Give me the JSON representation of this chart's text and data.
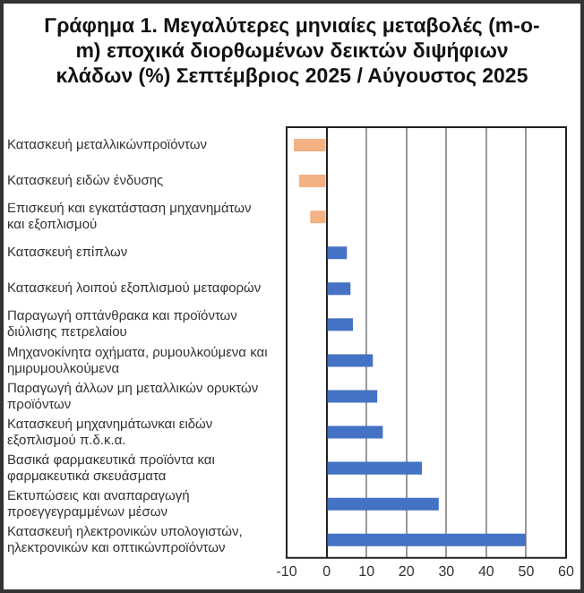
{
  "chart_data": {
    "type": "bar",
    "orientation": "horizontal",
    "title": "Γράφημα 1. Μεγαλύτερες μηνιαίες μεταβολές (m-o-m) εποχικά διορθωμένων δεικτών διψήφιων κλάδων (%) Σεπτέμβριος 2025 / Αύγουστος 2025",
    "categories": [
      "Κατασκευή μεταλλικώνπροϊόντων",
      "Κατασκευή ειδών ένδυσης",
      "Επισκευή και εγκατάσταση μηχανημάτων και εξοπλισμού",
      "Κατασκευή επίπλων",
      "Κατασκευή λοιπού εξοπλισμού μεταφορών",
      "Παραγωγή οπτάνθρακα και προϊόντων διύλισης πετρελαίου",
      "Μηχανοκίνητα οχήματα, ρυμουλκούμενα και ημιρυμουλκούμενα",
      "Παραγωγή άλλων μη μεταλλικών ορυκτών προϊόντων",
      "Κατασκευή μηχανημάτωνκαι ειδών εξοπλισμού π.δ.κ.α.",
      "Βασικά φαρμακευτικά προϊόντα και φαρμακευτικά σκευάσματα",
      "Εκτυπώσεις και αναπαραγωγή προεγγεγραμμένων μέσων",
      "Κατασκευή ηλεκτρονικών υπολογιστών, ηλεκτρονικών και οπτικώνπροϊόντων"
    ],
    "values": [
      -8.2,
      -6.9,
      -4.1,
      5.1,
      6.0,
      6.6,
      11.6,
      12.7,
      14.1,
      23.9,
      28.1,
      49.9
    ],
    "colors": [
      "#f4b183",
      "#f4b183",
      "#f4b183",
      "#4472c4",
      "#4472c4",
      "#4472c4",
      "#4472c4",
      "#4472c4",
      "#4472c4",
      "#4472c4",
      "#4472c4",
      "#4472c4"
    ],
    "xlim": [
      -10,
      60
    ],
    "xticks": [
      -10,
      0,
      10,
      20,
      30,
      40,
      50,
      60
    ],
    "grid": "x",
    "legend": false
  }
}
